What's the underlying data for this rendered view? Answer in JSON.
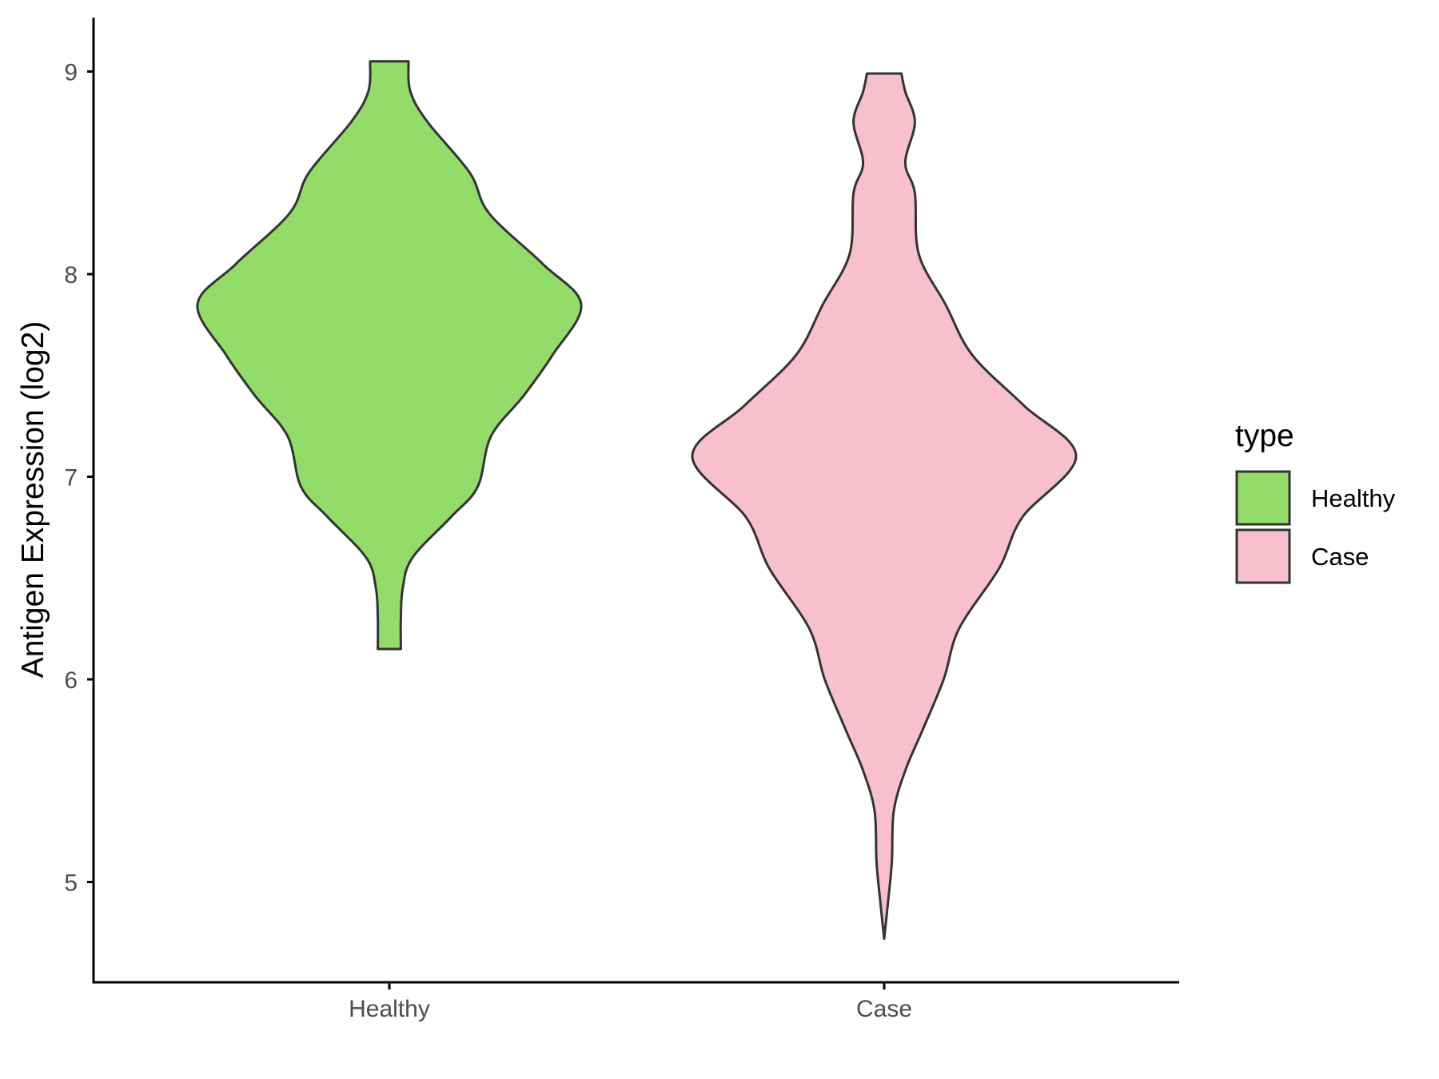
{
  "chart_data": {
    "type": "violin",
    "ylabel": "Antigen Expression (log2)",
    "xlabel": "",
    "ylim": [
      4.5,
      9.25
    ],
    "yticks": [
      5,
      6,
      7,
      8,
      9
    ],
    "categories": [
      "Healthy",
      "Case"
    ],
    "legend": {
      "title": "type",
      "placement": "right",
      "entries": [
        "Healthy",
        "Case"
      ]
    },
    "grid": false,
    "series": [
      {
        "name": "Healthy",
        "color": "#93dc6a",
        "min": 6.15,
        "max": 9.05,
        "density": [
          [
            6.15,
            0.06
          ],
          [
            6.3,
            0.06
          ],
          [
            6.45,
            0.07
          ],
          [
            6.6,
            0.12
          ],
          [
            6.8,
            0.32
          ],
          [
            6.95,
            0.46
          ],
          [
            7.2,
            0.53
          ],
          [
            7.4,
            0.7
          ],
          [
            7.6,
            0.85
          ],
          [
            7.85,
            1.0
          ],
          [
            8.05,
            0.8
          ],
          [
            8.3,
            0.52
          ],
          [
            8.5,
            0.42
          ],
          [
            8.75,
            0.2
          ],
          [
            8.9,
            0.11
          ],
          [
            9.05,
            0.1
          ]
        ]
      },
      {
        "name": "Case",
        "color": "#f7c0cc",
        "min": 4.72,
        "max": 8.99,
        "density": [
          [
            4.72,
            0.0
          ],
          [
            4.9,
            0.02
          ],
          [
            5.1,
            0.04
          ],
          [
            5.35,
            0.05
          ],
          [
            5.55,
            0.11
          ],
          [
            5.75,
            0.2
          ],
          [
            6.0,
            0.31
          ],
          [
            6.25,
            0.39
          ],
          [
            6.55,
            0.6
          ],
          [
            6.8,
            0.72
          ],
          [
            7.1,
            1.0
          ],
          [
            7.35,
            0.73
          ],
          [
            7.6,
            0.46
          ],
          [
            7.85,
            0.32
          ],
          [
            8.1,
            0.18
          ],
          [
            8.4,
            0.16
          ],
          [
            8.55,
            0.11
          ],
          [
            8.75,
            0.16
          ],
          [
            8.9,
            0.11
          ],
          [
            8.99,
            0.09
          ]
        ]
      }
    ]
  }
}
